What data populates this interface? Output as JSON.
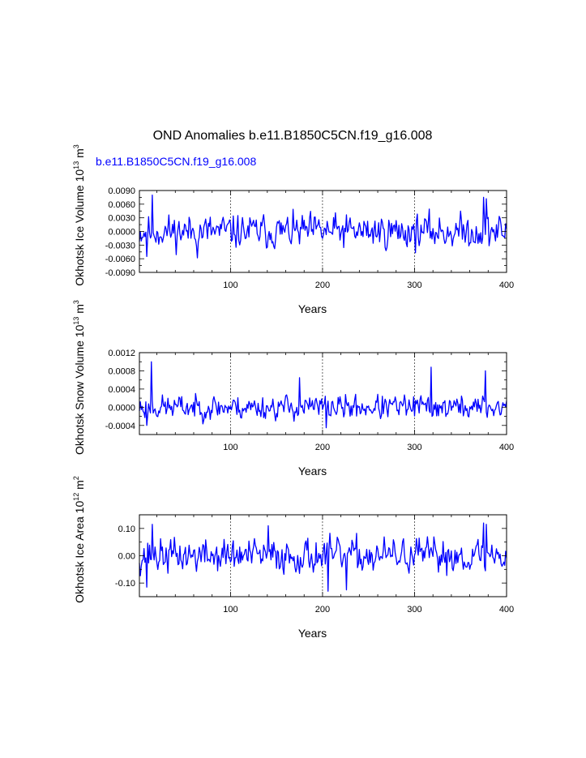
{
  "title": "OND Anomalies b.e11.B1850C5CN.f19_g16.008",
  "subtitle": "b.e11.B1850C5CN.f19_g16.008",
  "colors": {
    "series": "#0000ff",
    "subtitle": "#0000ff",
    "axis": "#000000",
    "grid": "#000000",
    "background": "#ffffff"
  },
  "chart_data": [
    {
      "type": "line",
      "ylabel": "Okhotsk Ice Volume",
      "units": {
        "scale": "10",
        "scale_exp": "13",
        "unit": "m",
        "unit_exp": "3"
      },
      "xlabel": "Years",
      "xlim": [
        1,
        400
      ],
      "ylim": [
        -0.009,
        0.009
      ],
      "xticks": [
        100,
        200,
        300,
        400
      ],
      "xtick_labels": [
        "100",
        "200",
        "300",
        "400"
      ],
      "yticks": [
        -0.009,
        -0.006,
        -0.003,
        0.0,
        0.003,
        0.006,
        0.009
      ],
      "ytick_labels": [
        "-0.0090",
        "-0.0060",
        "-0.0030",
        "0.0000",
        "0.0030",
        "0.0060",
        "0.0090"
      ],
      "grid": "dashed vertical at x ticks",
      "series": [
        {
          "name": "b.e11.B1850C5CN.f19_g16.008",
          "seed": 11,
          "amplitude": 0.0025,
          "clip": [
            -0.0058,
            0.008
          ],
          "peaks": [
            [
              15,
              0.008
            ],
            [
              9,
              -0.0055
            ],
            [
              375,
              0.0075
            ],
            [
              378,
              0.0072
            ],
            [
              64,
              -0.0058
            ]
          ]
        }
      ]
    },
    {
      "type": "line",
      "ylabel": "Okhotsk Snow Volume",
      "units": {
        "scale": "10",
        "scale_exp": "13",
        "unit": "m",
        "unit_exp": "3"
      },
      "xlabel": "Years",
      "xlim": [
        1,
        400
      ],
      "ylim": [
        -0.0006,
        0.0012
      ],
      "xticks": [
        100,
        200,
        300,
        400
      ],
      "xtick_labels": [
        "100",
        "200",
        "300",
        "400"
      ],
      "yticks": [
        -0.0004,
        0.0,
        0.0004,
        0.0008,
        0.0012
      ],
      "ytick_labels": [
        "-0.0004",
        "0.0000",
        "0.0004",
        "0.0008",
        "0.0012"
      ],
      "grid": "dashed vertical at x ticks",
      "series": [
        {
          "name": "b.e11.B1850C5CN.f19_g16.008",
          "seed": 23,
          "amplitude": 0.00018,
          "clip": [
            -0.00045,
            0.00101
          ],
          "peaks": [
            [
              14,
              0.001
            ],
            [
              9,
              -0.0004
            ],
            [
              318,
              0.00088
            ],
            [
              175,
              0.00065
            ],
            [
              377,
              0.0008
            ],
            [
              204,
              -0.00045
            ]
          ]
        }
      ]
    },
    {
      "type": "line",
      "ylabel": "Okhotsk Ice Area",
      "units": {
        "scale": "10",
        "scale_exp": "12",
        "unit": "m",
        "unit_exp": "2"
      },
      "xlabel": "Years",
      "xlim": [
        1,
        400
      ],
      "ylim": [
        -0.15,
        0.15
      ],
      "xticks": [
        100,
        200,
        300,
        400
      ],
      "xtick_labels": [
        "100",
        "200",
        "300",
        "400"
      ],
      "yticks": [
        -0.1,
        0.0,
        0.1
      ],
      "ytick_labels": [
        "-0.10",
        "0.00",
        "0.10"
      ],
      "grid": "dashed vertical at x ticks",
      "series": [
        {
          "name": "b.e11.B1850C5CN.f19_g16.008",
          "seed": 37,
          "amplitude": 0.042,
          "clip": [
            -0.135,
            0.125
          ],
          "peaks": [
            [
              15,
              0.115
            ],
            [
              9,
              -0.115
            ],
            [
              375,
              0.12
            ],
            [
              378,
              0.115
            ],
            [
              206,
              -0.13
            ],
            [
              226,
              -0.125
            ],
            [
              141,
              0.11
            ]
          ]
        }
      ]
    }
  ]
}
